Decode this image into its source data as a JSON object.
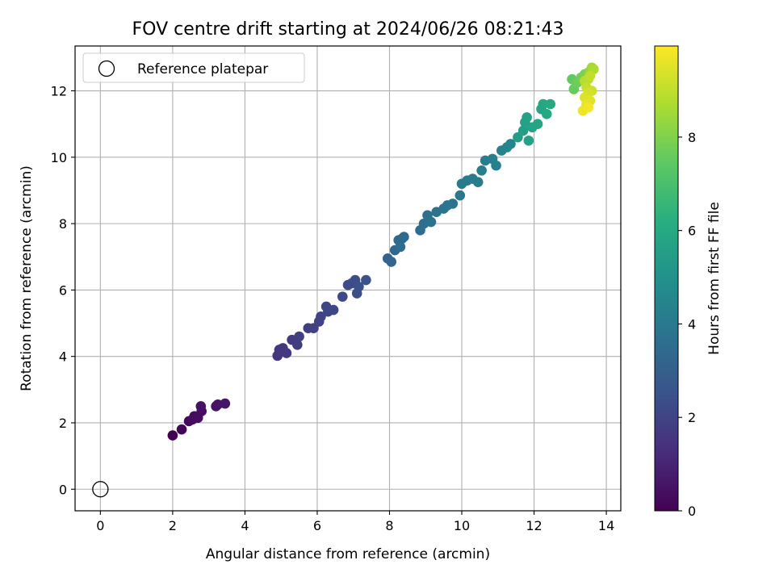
{
  "chart_data": {
    "type": "scatter",
    "title": "FOV centre drift starting at 2024/06/26 08:21:43",
    "xlabel": "Angular distance from reference (arcmin)",
    "ylabel": "Rotation from reference (arcmin)",
    "xlim": [
      -0.7,
      14.4
    ],
    "ylim": [
      -0.65,
      13.35
    ],
    "x_ticks": [
      0,
      2,
      4,
      6,
      8,
      10,
      12,
      14
    ],
    "y_ticks": [
      0,
      2,
      4,
      6,
      8,
      10,
      12
    ],
    "grid": true,
    "legend": {
      "placement": "top-left",
      "entries": [
        "Reference platepar"
      ]
    },
    "reference_point": {
      "name": "Reference platepar",
      "x": 0,
      "y": 0
    },
    "colorbar": {
      "label": "Hours from first FF file",
      "colormap": "viridis",
      "range": [
        0,
        9.95
      ],
      "ticks": [
        0,
        2,
        4,
        6,
        8
      ]
    },
    "series": [
      {
        "color_by": "hours",
        "points": [
          [
            2.0,
            1.62,
            0.0
          ],
          [
            2.25,
            1.8,
            0.1
          ],
          [
            2.45,
            2.05,
            0.2
          ],
          [
            2.6,
            2.2,
            0.25
          ],
          [
            2.55,
            2.1,
            0.3
          ],
          [
            2.7,
            2.15,
            0.35
          ],
          [
            2.8,
            2.35,
            0.4
          ],
          [
            2.78,
            2.5,
            0.45
          ],
          [
            3.2,
            2.5,
            0.5
          ],
          [
            3.25,
            2.55,
            0.55
          ],
          [
            3.45,
            2.58,
            0.6
          ],
          [
            4.9,
            4.02,
            1.5
          ],
          [
            4.95,
            4.2,
            1.55
          ],
          [
            5.05,
            4.25,
            1.6
          ],
          [
            5.15,
            4.1,
            1.65
          ],
          [
            5.3,
            4.5,
            1.7
          ],
          [
            5.45,
            4.35,
            1.75
          ],
          [
            5.5,
            4.6,
            1.8
          ],
          [
            5.75,
            4.85,
            1.85
          ],
          [
            5.9,
            4.85,
            1.9
          ],
          [
            6.05,
            5.05,
            1.95
          ],
          [
            6.1,
            5.2,
            2.0
          ],
          [
            6.25,
            5.5,
            2.05
          ],
          [
            6.3,
            5.35,
            2.1
          ],
          [
            6.45,
            5.4,
            2.15
          ],
          [
            6.7,
            5.8,
            2.2
          ],
          [
            6.85,
            6.15,
            2.25
          ],
          [
            6.95,
            6.2,
            2.3
          ],
          [
            7.05,
            6.3,
            2.35
          ],
          [
            7.1,
            5.9,
            2.4
          ],
          [
            7.15,
            6.1,
            2.45
          ],
          [
            7.35,
            6.3,
            2.5
          ],
          [
            7.95,
            6.95,
            3.2
          ],
          [
            8.05,
            6.85,
            3.25
          ],
          [
            8.15,
            7.2,
            3.3
          ],
          [
            8.25,
            7.5,
            3.35
          ],
          [
            8.35,
            7.55,
            3.4
          ],
          [
            8.4,
            7.6,
            3.45
          ],
          [
            8.3,
            7.3,
            3.5
          ],
          [
            8.85,
            7.8,
            3.55
          ],
          [
            8.95,
            8.0,
            3.6
          ],
          [
            9.05,
            8.25,
            3.65
          ],
          [
            9.15,
            8.05,
            3.7
          ],
          [
            9.3,
            8.35,
            3.75
          ],
          [
            9.5,
            8.45,
            3.8
          ],
          [
            9.6,
            8.55,
            3.85
          ],
          [
            9.75,
            8.6,
            3.9
          ],
          [
            9.95,
            8.85,
            3.95
          ],
          [
            10.0,
            9.2,
            4.0
          ],
          [
            10.15,
            9.3,
            4.05
          ],
          [
            10.3,
            9.35,
            4.1
          ],
          [
            10.45,
            9.25,
            4.15
          ],
          [
            10.55,
            9.6,
            4.2
          ],
          [
            10.65,
            9.9,
            4.25
          ],
          [
            10.85,
            9.95,
            4.3
          ],
          [
            10.95,
            9.75,
            4.35
          ],
          [
            11.1,
            10.2,
            4.4
          ],
          [
            11.25,
            10.3,
            4.45
          ],
          [
            11.35,
            10.4,
            4.5
          ],
          [
            11.55,
            10.6,
            5.5
          ],
          [
            11.7,
            10.8,
            5.55
          ],
          [
            11.75,
            11.05,
            5.6
          ],
          [
            11.8,
            11.2,
            5.65
          ],
          [
            11.85,
            10.5,
            5.7
          ],
          [
            11.95,
            10.9,
            5.75
          ],
          [
            12.1,
            11.0,
            5.8
          ],
          [
            12.2,
            11.45,
            5.85
          ],
          [
            12.25,
            11.6,
            5.9
          ],
          [
            12.35,
            11.3,
            5.95
          ],
          [
            12.45,
            11.6,
            6.0
          ],
          [
            13.05,
            12.35,
            7.5
          ],
          [
            13.1,
            12.05,
            7.6
          ],
          [
            13.2,
            12.25,
            7.7
          ],
          [
            13.3,
            12.4,
            7.8
          ],
          [
            13.4,
            12.5,
            7.9
          ],
          [
            13.5,
            12.55,
            8.1
          ],
          [
            13.55,
            12.6,
            8.3
          ],
          [
            13.6,
            12.7,
            8.5
          ],
          [
            13.65,
            12.65,
            8.7
          ],
          [
            13.4,
            12.3,
            8.8
          ],
          [
            13.5,
            12.35,
            8.9
          ],
          [
            13.55,
            12.45,
            9.0
          ],
          [
            13.45,
            12.1,
            9.1
          ],
          [
            13.6,
            12.0,
            9.2
          ],
          [
            13.5,
            11.95,
            9.3
          ],
          [
            13.4,
            11.8,
            9.4
          ],
          [
            13.55,
            11.7,
            9.5
          ],
          [
            13.45,
            11.6,
            9.6
          ],
          [
            13.35,
            11.4,
            9.7
          ],
          [
            13.5,
            11.5,
            9.8
          ]
        ]
      }
    ]
  }
}
